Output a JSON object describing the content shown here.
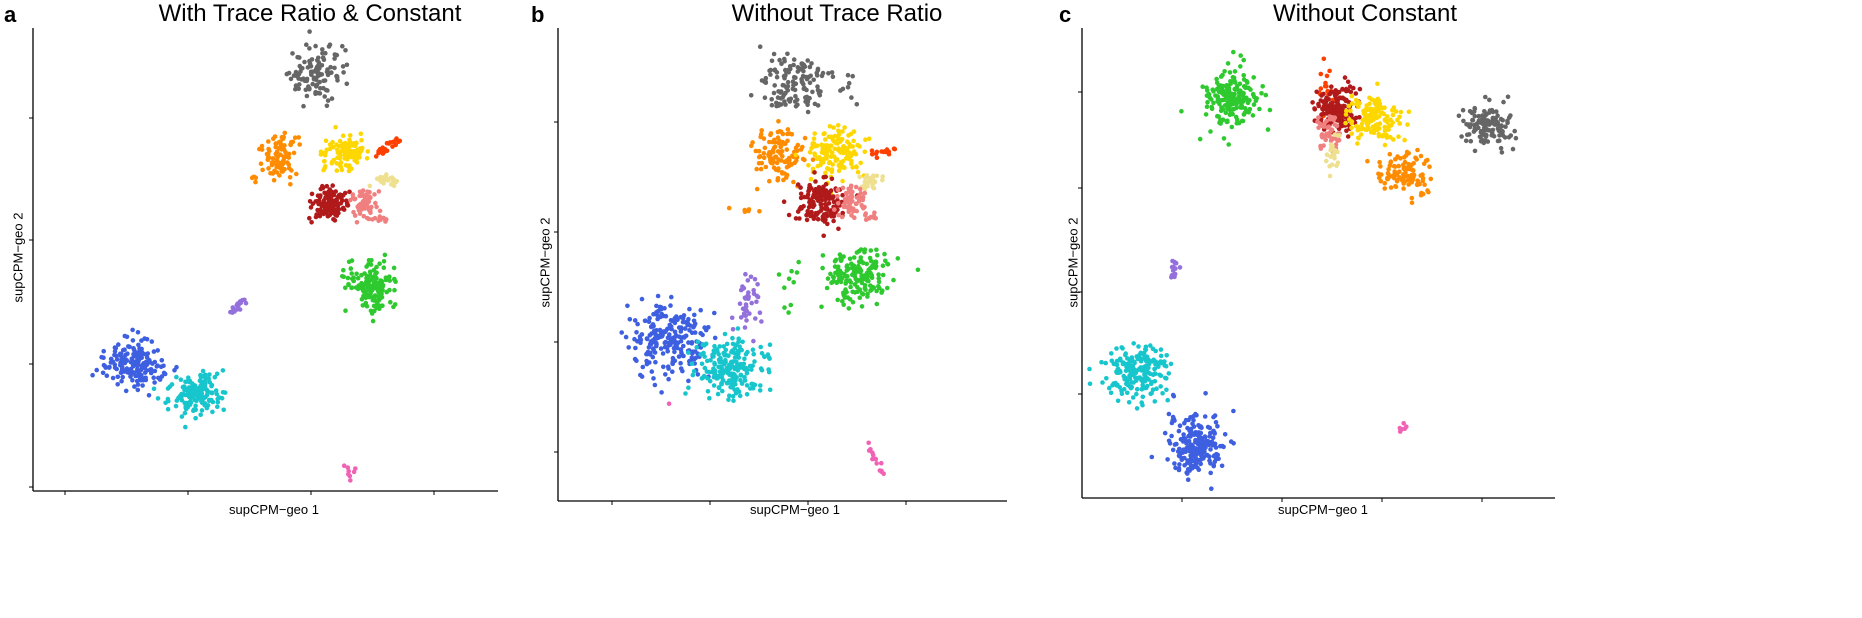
{
  "colors": {
    "blue": "#3d5fe0",
    "cyan": "#17c6cc",
    "green": "#2ec92e",
    "purple": "#9370db",
    "pink": "#f062b5",
    "gray": "#666666",
    "orange": "#ff8c00",
    "gold": "#ffd700",
    "redorange": "#ff3f00",
    "khaki": "#eee08f",
    "darkred": "#b11a1a",
    "salmon": "#f08080"
  },
  "panels": [
    {
      "letter": "a",
      "title": "With Trace Ratio & Constant",
      "xlabel": "supCPM−geo 1",
      "ylabel": "supCPM−geo 2"
    },
    {
      "letter": "b",
      "title": "Without Trace Ratio",
      "xlabel": "supCPM−geo 1",
      "ylabel": "supCPM−geo 2"
    },
    {
      "letter": "c",
      "title": "Without Constant",
      "xlabel": "supCPM−geo 1",
      "ylabel": "supCPM−geo 2"
    }
  ],
  "chart_data": [
    {
      "type": "scatter",
      "title": "With Trace Ratio & Constant",
      "xlabel": "supCPM−geo 1",
      "ylabel": "supCPM−geo 2",
      "xlim": [
        0,
        100
      ],
      "ylim": [
        0,
        100
      ],
      "grid": false,
      "clusters": [
        {
          "color": "gray",
          "cx": 61,
          "cy": 90,
          "sx": 3.0,
          "sy": 3.2,
          "n": 110
        },
        {
          "color": "orange",
          "cx": 53,
          "cy": 72,
          "sx": 2.2,
          "sy": 2.2,
          "n": 90
        },
        {
          "color": "orange",
          "cx": 47.5,
          "cy": 67.5,
          "sx": 0.4,
          "sy": 0.6,
          "n": 5
        },
        {
          "color": "gold",
          "cx": 67,
          "cy": 73,
          "sx": 2.3,
          "sy": 2.2,
          "n": 120
        },
        {
          "color": "redorange",
          "cx": 74.5,
          "cy": 73,
          "sx": 2.0,
          "sy": 1.0,
          "n": 25,
          "shape": "line",
          "x2": 78.5,
          "y2": 76
        },
        {
          "color": "khaki",
          "cx": 76,
          "cy": 67,
          "sx": 1.5,
          "sy": 0.6,
          "n": 25
        },
        {
          "color": "darkred",
          "cx": 64,
          "cy": 62,
          "sx": 2.0,
          "sy": 1.8,
          "n": 130
        },
        {
          "color": "salmon",
          "cx": 71,
          "cy": 62,
          "sx": 1.3,
          "sy": 1.6,
          "n": 60
        },
        {
          "color": "salmon",
          "cx": 74,
          "cy": 58.5,
          "sx": 1.5,
          "sy": 0.5,
          "n": 12
        },
        {
          "color": "green",
          "cx": 72.5,
          "cy": 44,
          "sx": 3.0,
          "sy": 2.6,
          "n": 150
        },
        {
          "color": "purple",
          "cx": 42,
          "cy": 38,
          "sx": 1.0,
          "sy": 2.0,
          "n": 18,
          "shape": "line",
          "x2": 45.5,
          "y2": 41
        },
        {
          "color": "blue",
          "cx": 21.5,
          "cy": 27.5,
          "sx": 3.4,
          "sy": 2.6,
          "n": 170
        },
        {
          "color": "cyan",
          "cx": 35,
          "cy": 21,
          "sx": 2.8,
          "sy": 2.4,
          "n": 160
        },
        {
          "color": "pink",
          "cx": 68,
          "cy": 4,
          "sx": 0.6,
          "sy": 0.8,
          "n": 8
        }
      ]
    },
    {
      "type": "scatter",
      "title": "Without Trace Ratio",
      "xlabel": "supCPM−geo 1",
      "ylabel": "supCPM−geo 2",
      "xlim": [
        0,
        100
      ],
      "ylim": [
        0,
        100
      ],
      "grid": false,
      "clusters": [
        {
          "color": "gray",
          "cx": 53,
          "cy": 88,
          "sx": 3.6,
          "sy": 2.8,
          "n": 130
        },
        {
          "color": "gray",
          "cx": 64.5,
          "cy": 87,
          "sx": 0.8,
          "sy": 1.5,
          "n": 8
        },
        {
          "color": "orange",
          "cx": 49,
          "cy": 73,
          "sx": 3.0,
          "sy": 2.8,
          "n": 120
        },
        {
          "color": "orange",
          "cx": 42.5,
          "cy": 61.5,
          "sx": 1.2,
          "sy": 0.4,
          "n": 6
        },
        {
          "color": "gold",
          "cx": 61.5,
          "cy": 74,
          "sx": 3.0,
          "sy": 2.5,
          "n": 140
        },
        {
          "color": "redorange",
          "cx": 70,
          "cy": 73,
          "sx": 2.5,
          "sy": 1.0,
          "n": 14,
          "shape": "line",
          "x2": 75,
          "y2": 74.5
        },
        {
          "color": "khaki",
          "cx": 69,
          "cy": 67.5,
          "sx": 1.5,
          "sy": 0.9,
          "n": 30
        },
        {
          "color": "darkred",
          "cx": 58.5,
          "cy": 63,
          "sx": 2.5,
          "sy": 2.3,
          "n": 140
        },
        {
          "color": "salmon",
          "cx": 65.5,
          "cy": 63.5,
          "sx": 1.6,
          "sy": 1.9,
          "n": 60
        },
        {
          "color": "salmon",
          "cx": 68.5,
          "cy": 60,
          "sx": 1.5,
          "sy": 0.5,
          "n": 10
        },
        {
          "color": "green",
          "cx": 67,
          "cy": 47,
          "sx": 3.6,
          "sy": 2.8,
          "n": 170
        },
        {
          "color": "green",
          "cx": 53,
          "cy": 46,
          "sx": 2.5,
          "sy": 3.0,
          "n": 10
        },
        {
          "color": "purple",
          "cx": 42.5,
          "cy": 42,
          "sx": 1.4,
          "sy": 3.4,
          "n": 40
        },
        {
          "color": "blue",
          "cx": 25,
          "cy": 34,
          "sx": 4.5,
          "sy": 4.0,
          "n": 230
        },
        {
          "color": "cyan",
          "cx": 38,
          "cy": 28,
          "sx": 3.5,
          "sy": 3.2,
          "n": 210
        },
        {
          "color": "pink",
          "cx": 69,
          "cy": 12,
          "sx": 1.8,
          "sy": 3.5,
          "n": 14,
          "shape": "line",
          "x2": 72.5,
          "y2": 5
        },
        {
          "color": "pink",
          "cx": 25,
          "cy": 20,
          "sx": 0.2,
          "sy": 0.2,
          "n": 1
        }
      ]
    },
    {
      "type": "scatter",
      "title": "Without Constant",
      "xlabel": "supCPM−geo 1",
      "ylabel": "supCPM−geo 2",
      "xlim": [
        0,
        100
      ],
      "ylim": [
        0,
        100
      ],
      "grid": false,
      "clusters": [
        {
          "color": "green",
          "cx": 32,
          "cy": 85,
          "sx": 3.0,
          "sy": 3.2,
          "n": 190
        },
        {
          "color": "green",
          "cx": 25,
          "cy": 76.5,
          "sx": 0.3,
          "sy": 0.3,
          "n": 1
        },
        {
          "color": "redorange",
          "cx": 51.5,
          "cy": 87,
          "sx": 0.8,
          "sy": 3.0,
          "n": 20
        },
        {
          "color": "darkred",
          "cx": 54,
          "cy": 82.5,
          "sx": 2.2,
          "sy": 2.6,
          "n": 180
        },
        {
          "color": "salmon",
          "cx": 52,
          "cy": 77,
          "sx": 1.4,
          "sy": 2.0,
          "n": 50
        },
        {
          "color": "khaki",
          "cx": 53,
          "cy": 73,
          "sx": 0.7,
          "sy": 2.2,
          "n": 25
        },
        {
          "color": "gold",
          "cx": 62,
          "cy": 80.5,
          "sx": 3.0,
          "sy": 2.4,
          "n": 150
        },
        {
          "color": "orange",
          "cx": 68,
          "cy": 69,
          "sx": 2.6,
          "sy": 2.4,
          "n": 110
        },
        {
          "color": "gray",
          "cx": 86,
          "cy": 79,
          "sx": 2.6,
          "sy": 2.0,
          "n": 130
        },
        {
          "color": "purple",
          "cx": 19.5,
          "cy": 49,
          "sx": 0.5,
          "sy": 1.5,
          "n": 14
        },
        {
          "color": "cyan",
          "cx": 12,
          "cy": 26.5,
          "sx": 3.2,
          "sy": 2.9,
          "n": 200
        },
        {
          "color": "blue",
          "cx": 24,
          "cy": 11,
          "sx": 3.0,
          "sy": 3.4,
          "n": 210
        },
        {
          "color": "pink",
          "cx": 67.5,
          "cy": 14.5,
          "sx": 0.4,
          "sy": 0.5,
          "n": 6
        }
      ]
    }
  ]
}
